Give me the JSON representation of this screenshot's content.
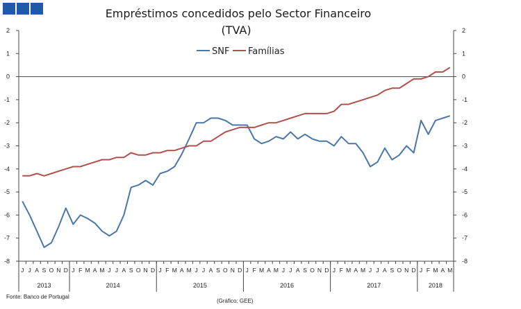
{
  "header": {
    "logo_squares": [
      "logo-square-1",
      "logo-square-2",
      "logo-square-3"
    ],
    "logo_color": "#1f5aa6"
  },
  "footer": {
    "source": "Fonte: Banco de Portugal",
    "credit": "(Gráfico: GEE)"
  },
  "chart_data": {
    "type": "line",
    "title": "Empréstimos concedidos pelo Sector Financeiro",
    "subtitle": "(TVA)",
    "ylim": [
      -8,
      2
    ],
    "yticks": [
      2,
      1,
      0,
      -1,
      -2,
      -3,
      -4,
      -5,
      -6,
      -7,
      -8
    ],
    "grid": false,
    "legend_position": "top-center",
    "months": [
      "J",
      "J",
      "A",
      "S",
      "O",
      "N",
      "D",
      "J",
      "F",
      "M",
      "A",
      "M",
      "J",
      "J",
      "A",
      "S",
      "O",
      "N",
      "D",
      "J",
      "F",
      "M",
      "A",
      "M",
      "J",
      "J",
      "A",
      "S",
      "O",
      "N",
      "D",
      "J",
      "F",
      "M",
      "A",
      "M",
      "J",
      "J",
      "A",
      "S",
      "O",
      "N",
      "D",
      "J",
      "F",
      "M",
      "A",
      "M",
      "J",
      "J",
      "A",
      "S",
      "O",
      "N",
      "D",
      "J",
      "F",
      "M",
      "A",
      "M"
    ],
    "years": [
      {
        "label": "2013",
        "start": 0,
        "end": 6
      },
      {
        "label": "2014",
        "start": 7,
        "end": 18
      },
      {
        "label": "2015",
        "start": 19,
        "end": 30
      },
      {
        "label": "2016",
        "start": 31,
        "end": 42
      },
      {
        "label": "2017",
        "start": 43,
        "end": 54
      },
      {
        "label": "2018",
        "start": 55,
        "end": 59
      }
    ],
    "series": [
      {
        "name": "SNF",
        "color": "#4a76a8",
        "values": [
          -5.4,
          -6.0,
          -6.7,
          -7.4,
          -7.2,
          -6.5,
          -5.7,
          -6.4,
          -6.0,
          -6.15,
          -6.35,
          -6.7,
          -6.9,
          -6.7,
          -6.0,
          -4.8,
          -4.7,
          -4.5,
          -4.7,
          -4.2,
          -4.1,
          -3.9,
          -3.35,
          -2.7,
          -2.0,
          -2.0,
          -1.8,
          -1.8,
          -1.9,
          -2.1,
          -2.1,
          -2.1,
          -2.7,
          -2.9,
          -2.8,
          -2.6,
          -2.7,
          -2.4,
          -2.7,
          -2.5,
          -2.7,
          -2.8,
          -2.8,
          -3.0,
          -2.6,
          -2.9,
          -2.9,
          -3.3,
          -3.9,
          -3.7,
          -3.1,
          -3.6,
          -3.4,
          -3.0,
          -3.3,
          -1.9,
          -2.5,
          -1.9,
          -1.8,
          -1.7
        ]
      },
      {
        "name": "Famílias",
        "color": "#b0504c",
        "values": [
          -4.3,
          -4.3,
          -4.2,
          -4.3,
          -4.2,
          -4.1,
          -4.0,
          -3.9,
          -3.9,
          -3.8,
          -3.7,
          -3.6,
          -3.6,
          -3.5,
          -3.5,
          -3.3,
          -3.4,
          -3.4,
          -3.3,
          -3.3,
          -3.2,
          -3.2,
          -3.1,
          -3.0,
          -3.0,
          -2.8,
          -2.8,
          -2.6,
          -2.4,
          -2.3,
          -2.2,
          -2.2,
          -2.2,
          -2.1,
          -2.0,
          -2.0,
          -1.9,
          -1.8,
          -1.7,
          -1.6,
          -1.6,
          -1.6,
          -1.6,
          -1.5,
          -1.2,
          -1.2,
          -1.1,
          -1.0,
          -0.9,
          -0.8,
          -0.6,
          -0.5,
          -0.5,
          -0.3,
          -0.1,
          -0.1,
          0.0,
          0.2,
          0.2,
          0.4
        ]
      }
    ]
  }
}
